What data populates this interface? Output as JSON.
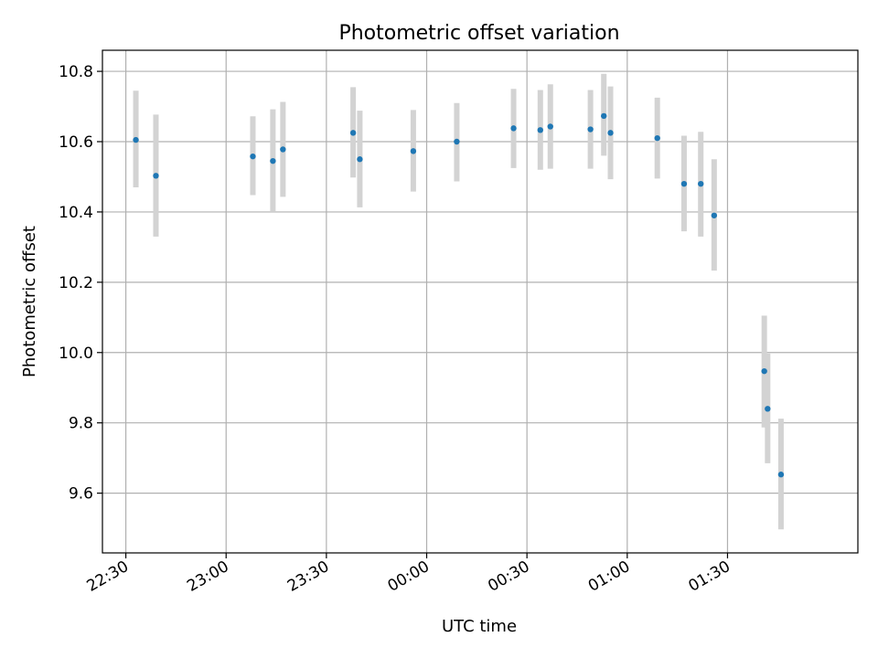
{
  "chart_data": {
    "type": "scatter",
    "title": "Photometric offset variation",
    "xlabel": "UTC time",
    "ylabel": "Photometric offset",
    "grid": true,
    "x_axis": {
      "kind": "time",
      "range": [
        "22:23",
        "02:09"
      ],
      "ticks": [
        {
          "t": "22:30",
          "label": "22:30"
        },
        {
          "t": "23:00",
          "label": "23:00"
        },
        {
          "t": "23:30",
          "label": "23:30"
        },
        {
          "t": "00:00",
          "label": "00:00"
        },
        {
          "t": "00:30",
          "label": "00:30"
        },
        {
          "t": "01:00",
          "label": "01:00"
        },
        {
          "t": "01:30",
          "label": "01:30"
        }
      ]
    },
    "y_axis": {
      "range": [
        9.43,
        10.86
      ],
      "ticks": [
        9.6,
        9.8,
        10.0,
        10.2,
        10.4,
        10.6,
        10.8
      ],
      "tick_labels": [
        "9.6",
        "9.8",
        "10.0",
        "10.2",
        "10.4",
        "10.6",
        "10.8"
      ]
    },
    "colors": {
      "points": "#1f77b4",
      "errorbars": "#d3d3d3",
      "grid": "#b0b0b0"
    },
    "series": [
      {
        "points": [
          {
            "t": "22:33",
            "y": 10.605,
            "lo": 10.47,
            "hi": 10.745
          },
          {
            "t": "22:39",
            "y": 10.503,
            "lo": 10.33,
            "hi": 10.677
          },
          {
            "t": "23:08",
            "y": 10.558,
            "lo": 10.448,
            "hi": 10.672
          },
          {
            "t": "23:14",
            "y": 10.545,
            "lo": 10.4,
            "hi": 10.692
          },
          {
            "t": "23:17",
            "y": 10.578,
            "lo": 10.443,
            "hi": 10.713
          },
          {
            "t": "23:38",
            "y": 10.625,
            "lo": 10.498,
            "hi": 10.755
          },
          {
            "t": "23:40",
            "y": 10.55,
            "lo": 10.413,
            "hi": 10.688
          },
          {
            "t": "23:56",
            "y": 10.573,
            "lo": 10.458,
            "hi": 10.69
          },
          {
            "t": "00:09",
            "y": 10.6,
            "lo": 10.487,
            "hi": 10.71
          },
          {
            "t": "00:26",
            "y": 10.638,
            "lo": 10.525,
            "hi": 10.75
          },
          {
            "t": "00:34",
            "y": 10.633,
            "lo": 10.52,
            "hi": 10.747
          },
          {
            "t": "00:37",
            "y": 10.643,
            "lo": 10.523,
            "hi": 10.763
          },
          {
            "t": "00:49",
            "y": 10.635,
            "lo": 10.523,
            "hi": 10.747
          },
          {
            "t": "00:53",
            "y": 10.673,
            "lo": 10.56,
            "hi": 10.793
          },
          {
            "t": "00:55",
            "y": 10.625,
            "lo": 10.493,
            "hi": 10.757
          },
          {
            "t": "01:09",
            "y": 10.61,
            "lo": 10.495,
            "hi": 10.725
          },
          {
            "t": "01:17",
            "y": 10.48,
            "lo": 10.345,
            "hi": 10.617
          },
          {
            "t": "01:22",
            "y": 10.48,
            "lo": 10.33,
            "hi": 10.628
          },
          {
            "t": "01:26",
            "y": 10.39,
            "lo": 10.233,
            "hi": 10.55
          },
          {
            "t": "01:41",
            "y": 9.947,
            "lo": 9.787,
            "hi": 10.105
          },
          {
            "t": "01:42",
            "y": 9.84,
            "lo": 9.685,
            "hi": 9.997
          },
          {
            "t": "01:46",
            "y": 9.653,
            "lo": 9.497,
            "hi": 9.812
          }
        ]
      }
    ]
  }
}
